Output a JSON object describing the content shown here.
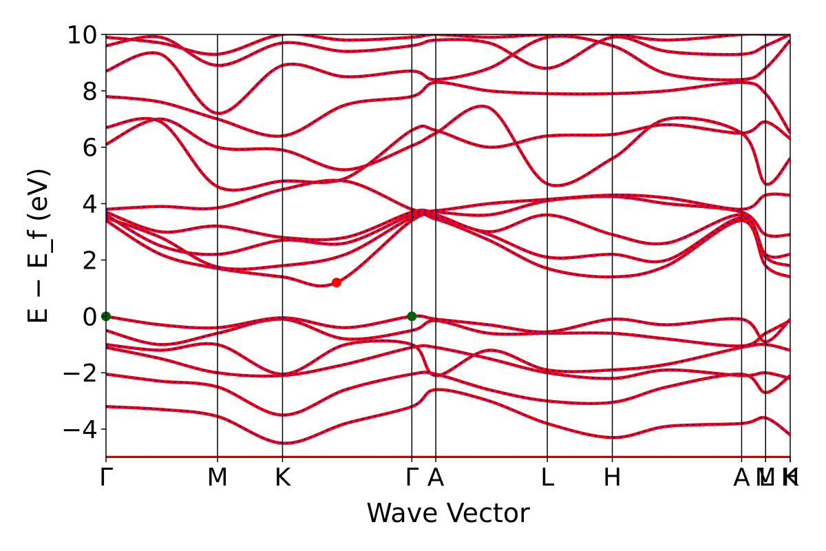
{
  "chart_data": {
    "type": "line",
    "xlabel": "Wave Vector",
    "ylabel": "E − E_f (eV)",
    "ylim": [
      -5,
      10
    ],
    "yticks": [
      -4,
      -2,
      0,
      2,
      4,
      6,
      8,
      10
    ],
    "ytick_labels": [
      "−4",
      "−2",
      "0",
      "2",
      "4",
      "6",
      "8",
      "10"
    ],
    "xlim": [
      0,
      1
    ],
    "high_symmetry_points": [
      {
        "label": "Γ",
        "x": 0.0
      },
      {
        "label": "M",
        "x": 0.163
      },
      {
        "label": "K",
        "x": 0.258
      },
      {
        "label": "Γ",
        "x": 0.447
      },
      {
        "label": "A",
        "x": 0.482
      },
      {
        "label": "L",
        "x": 0.645
      },
      {
        "label": "H",
        "x": 0.74
      },
      {
        "label": "A",
        "x": 0.929
      },
      {
        "label": "M",
        "x": 0.964
      },
      {
        "label": "L",
        "x": 0.964
      },
      {
        "label": "K",
        "x": 1.0
      },
      {
        "label": "H",
        "x": 1.0
      }
    ],
    "band_color": "#ff0000",
    "overlay_color": "#0000ff",
    "markers": [
      {
        "name": "CBM",
        "x": 0.337,
        "y": 1.2,
        "color": "#ff0000"
      },
      {
        "name": "VBM",
        "x": 0.0,
        "y": 0.0,
        "color": "#006400"
      },
      {
        "name": "VBM",
        "x": 0.447,
        "y": 0.0,
        "color": "#006400"
      }
    ],
    "bands": [
      [
        [
          0,
          -5.0
        ],
        [
          0.163,
          -5.0
        ],
        [
          0.258,
          -5.0
        ],
        [
          0.447,
          -5.0
        ],
        [
          0.482,
          -5.0
        ],
        [
          0.645,
          -5.0
        ],
        [
          0.74,
          -5.0
        ],
        [
          0.929,
          -5.0
        ],
        [
          0.964,
          -5.0
        ],
        [
          1.0,
          -5.0
        ]
      ],
      [
        [
          0,
          -3.2
        ],
        [
          0.08,
          -3.3
        ],
        [
          0.163,
          -3.55
        ],
        [
          0.258,
          -4.5
        ],
        [
          0.35,
          -3.8
        ],
        [
          0.447,
          -3.2
        ],
        [
          0.482,
          -2.6
        ],
        [
          0.56,
          -3.0
        ],
        [
          0.645,
          -3.8
        ],
        [
          0.74,
          -4.3
        ],
        [
          0.82,
          -3.9
        ],
        [
          0.929,
          -3.8
        ],
        [
          0.964,
          -3.6
        ],
        [
          1.0,
          -4.2
        ]
      ],
      [
        [
          0,
          -2.05
        ],
        [
          0.08,
          -2.3
        ],
        [
          0.163,
          -2.5
        ],
        [
          0.258,
          -3.5
        ],
        [
          0.35,
          -2.6
        ],
        [
          0.447,
          -2.05
        ],
        [
          0.482,
          -2.05
        ],
        [
          0.56,
          -2.6
        ],
        [
          0.645,
          -3.0
        ],
        [
          0.74,
          -3.05
        ],
        [
          0.82,
          -2.5
        ],
        [
          0.929,
          -2.05
        ],
        [
          0.964,
          -2.7
        ],
        [
          1.0,
          -2.1
        ]
      ],
      [
        [
          0,
          -1.1
        ],
        [
          0.08,
          -1.5
        ],
        [
          0.163,
          -2.0
        ],
        [
          0.258,
          -2.1
        ],
        [
          0.35,
          -1.7
        ],
        [
          0.447,
          -1.1
        ],
        [
          0.482,
          -1.1
        ],
        [
          0.56,
          -1.5
        ],
        [
          0.645,
          -2.0
        ],
        [
          0.74,
          -2.2
        ],
        [
          0.82,
          -1.9
        ],
        [
          0.929,
          -2.1
        ],
        [
          0.964,
          -2.0
        ],
        [
          1.0,
          -2.2
        ]
      ],
      [
        [
          0,
          -1.0
        ],
        [
          0.08,
          -1.2
        ],
        [
          0.163,
          -1.0
        ],
        [
          0.258,
          -2.05
        ],
        [
          0.35,
          -1.0
        ],
        [
          0.447,
          -1.0
        ],
        [
          0.482,
          -2.1
        ],
        [
          0.56,
          -1.2
        ],
        [
          0.645,
          -1.9
        ],
        [
          0.74,
          -1.9
        ],
        [
          0.82,
          -1.7
        ],
        [
          0.929,
          -1.1
        ],
        [
          0.964,
          -1.0
        ],
        [
          1.0,
          -1.2
        ]
      ],
      [
        [
          0,
          -0.5
        ],
        [
          0.08,
          -1.0
        ],
        [
          0.163,
          -0.6
        ],
        [
          0.258,
          -0.1
        ],
        [
          0.35,
          -0.8
        ],
        [
          0.447,
          -0.5
        ],
        [
          0.482,
          -0.15
        ],
        [
          0.56,
          -0.6
        ],
        [
          0.645,
          -0.6
        ],
        [
          0.74,
          -0.6
        ],
        [
          0.82,
          -0.8
        ],
        [
          0.929,
          -1.05
        ],
        [
          0.964,
          -0.6
        ],
        [
          1.0,
          -0.15
        ]
      ],
      [
        [
          0,
          0.0
        ],
        [
          0.08,
          -0.3
        ],
        [
          0.163,
          -0.4
        ],
        [
          0.258,
          -0.05
        ],
        [
          0.35,
          -0.4
        ],
        [
          0.447,
          0.0
        ],
        [
          0.482,
          -0.1
        ],
        [
          0.56,
          -0.3
        ],
        [
          0.645,
          -0.55
        ],
        [
          0.74,
          -0.1
        ],
        [
          0.82,
          -0.3
        ],
        [
          0.929,
          -0.1
        ],
        [
          0.964,
          -0.9
        ],
        [
          1.0,
          -0.1
        ]
      ],
      [
        [
          0,
          3.4
        ],
        [
          0.08,
          2.2
        ],
        [
          0.163,
          1.7
        ],
        [
          0.258,
          1.4
        ],
        [
          0.337,
          1.2
        ],
        [
          0.447,
          3.4
        ],
        [
          0.482,
          3.45
        ],
        [
          0.56,
          2.7
        ],
        [
          0.645,
          1.7
        ],
        [
          0.74,
          1.4
        ],
        [
          0.82,
          1.8
        ],
        [
          0.929,
          3.4
        ],
        [
          0.964,
          1.8
        ],
        [
          1.0,
          1.4
        ]
      ],
      [
        [
          0,
          3.5
        ],
        [
          0.08,
          2.8
        ],
        [
          0.163,
          1.75
        ],
        [
          0.258,
          1.8
        ],
        [
          0.35,
          2.2
        ],
        [
          0.447,
          3.5
        ],
        [
          0.482,
          3.5
        ],
        [
          0.56,
          2.9
        ],
        [
          0.645,
          2.1
        ],
        [
          0.74,
          2.2
        ],
        [
          0.82,
          2.0
        ],
        [
          0.929,
          3.5
        ],
        [
          0.964,
          2.1
        ],
        [
          1.0,
          1.8
        ]
      ],
      [
        [
          0,
          3.6
        ],
        [
          0.08,
          2.5
        ],
        [
          0.163,
          2.2
        ],
        [
          0.258,
          2.7
        ],
        [
          0.35,
          2.6
        ],
        [
          0.447,
          3.6
        ],
        [
          0.482,
          3.6
        ],
        [
          0.56,
          3.0
        ],
        [
          0.645,
          3.6
        ],
        [
          0.74,
          2.9
        ],
        [
          0.82,
          2.6
        ],
        [
          0.929,
          3.6
        ],
        [
          0.964,
          2.2
        ],
        [
          1.0,
          2.2
        ]
      ],
      [
        [
          0,
          3.7
        ],
        [
          0.08,
          3.0
        ],
        [
          0.163,
          3.2
        ],
        [
          0.258,
          2.8
        ],
        [
          0.35,
          2.8
        ],
        [
          0.447,
          3.7
        ],
        [
          0.482,
          3.7
        ],
        [
          0.56,
          3.6
        ],
        [
          0.645,
          4.1
        ],
        [
          0.74,
          4.25
        ],
        [
          0.82,
          4.0
        ],
        [
          0.929,
          3.7
        ],
        [
          0.964,
          2.9
        ],
        [
          1.0,
          2.9
        ]
      ],
      [
        [
          0,
          3.8
        ],
        [
          0.08,
          3.9
        ],
        [
          0.163,
          3.85
        ],
        [
          0.258,
          4.5
        ],
        [
          0.35,
          4.8
        ],
        [
          0.447,
          3.8
        ],
        [
          0.482,
          3.75
        ],
        [
          0.56,
          4.0
        ],
        [
          0.645,
          4.15
        ],
        [
          0.74,
          4.3
        ],
        [
          0.82,
          4.2
        ],
        [
          0.929,
          3.8
        ],
        [
          0.964,
          4.3
        ],
        [
          1.0,
          4.3
        ]
      ],
      [
        [
          0,
          6.1
        ],
        [
          0.08,
          7.0
        ],
        [
          0.163,
          6.0
        ],
        [
          0.258,
          5.9
        ],
        [
          0.35,
          5.2
        ],
        [
          0.447,
          6.05
        ],
        [
          0.482,
          6.5
        ],
        [
          0.56,
          7.4
        ],
        [
          0.645,
          4.7
        ],
        [
          0.74,
          5.6
        ],
        [
          0.82,
          7.0
        ],
        [
          0.929,
          6.5
        ],
        [
          0.964,
          4.7
        ],
        [
          1.0,
          5.6
        ]
      ],
      [
        [
          0,
          6.7
        ],
        [
          0.08,
          6.9
        ],
        [
          0.163,
          4.6
        ],
        [
          0.258,
          4.8
        ],
        [
          0.35,
          4.9
        ],
        [
          0.447,
          6.6
        ],
        [
          0.482,
          6.6
        ],
        [
          0.56,
          6.0
        ],
        [
          0.645,
          6.4
        ],
        [
          0.74,
          6.45
        ],
        [
          0.82,
          6.8
        ],
        [
          0.929,
          6.5
        ],
        [
          0.964,
          6.9
        ],
        [
          1.0,
          6.3
        ]
      ],
      [
        [
          0,
          7.8
        ],
        [
          0.08,
          7.6
        ],
        [
          0.163,
          7.0
        ],
        [
          0.258,
          6.4
        ],
        [
          0.35,
          7.5
        ],
        [
          0.447,
          7.8
        ],
        [
          0.482,
          8.3
        ],
        [
          0.56,
          8.0
        ],
        [
          0.645,
          7.9
        ],
        [
          0.74,
          7.9
        ],
        [
          0.82,
          8.0
        ],
        [
          0.929,
          8.3
        ],
        [
          0.964,
          7.9
        ],
        [
          1.0,
          6.5
        ]
      ],
      [
        [
          0,
          8.7
        ],
        [
          0.08,
          9.3
        ],
        [
          0.163,
          7.2
        ],
        [
          0.258,
          8.9
        ],
        [
          0.35,
          8.5
        ],
        [
          0.447,
          8.7
        ],
        [
          0.482,
          8.4
        ],
        [
          0.56,
          8.8
        ],
        [
          0.645,
          9.9
        ],
        [
          0.74,
          9.6
        ],
        [
          0.82,
          8.6
        ],
        [
          0.929,
          8.4
        ],
        [
          0.964,
          8.8
        ],
        [
          1.0,
          9.8
        ]
      ],
      [
        [
          0,
          9.6
        ],
        [
          0.08,
          9.9
        ],
        [
          0.163,
          8.9
        ],
        [
          0.258,
          9.7
        ],
        [
          0.35,
          9.4
        ],
        [
          0.447,
          9.6
        ],
        [
          0.482,
          9.8
        ],
        [
          0.56,
          9.7
        ],
        [
          0.645,
          8.8
        ],
        [
          0.74,
          9.9
        ],
        [
          0.82,
          9.4
        ],
        [
          0.929,
          9.3
        ],
        [
          0.964,
          9.6
        ],
        [
          1.0,
          10.0
        ]
      ],
      [
        [
          0,
          9.9
        ],
        [
          0.08,
          9.7
        ],
        [
          0.163,
          9.3
        ],
        [
          0.258,
          10.0
        ],
        [
          0.35,
          9.8
        ],
        [
          0.447,
          9.9
        ],
        [
          0.482,
          10.0
        ],
        [
          0.56,
          9.9
        ],
        [
          0.645,
          10.0
        ],
        [
          0.74,
          10.0
        ],
        [
          0.82,
          9.8
        ],
        [
          0.929,
          10.0
        ],
        [
          0.964,
          10.0
        ],
        [
          1.0,
          10.0
        ]
      ]
    ]
  }
}
